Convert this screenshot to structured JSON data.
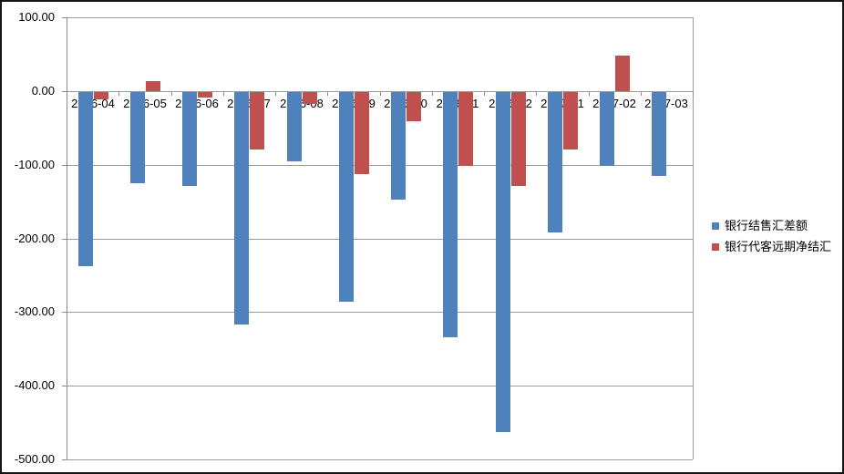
{
  "chart_data": {
    "type": "bar",
    "title": "",
    "xlabel": "",
    "ylabel": "",
    "categories": [
      "2016-04",
      "2016-05",
      "2016-06",
      "2016-07",
      "2016-08",
      "2016-09",
      "2016-10",
      "2016-11",
      "2016-12",
      "2017-01",
      "2017-02",
      "2017-03"
    ],
    "series": [
      {
        "name": "银行结售汇差额",
        "color": "#4F81BD",
        "values": [
          -236,
          -124,
          -128,
          -315,
          -94,
          -284,
          -146,
          -333,
          -462,
          -191,
          -100,
          -114
        ]
      },
      {
        "name": "银行代客远期净结汇",
        "color": "#C0504D",
        "values": [
          -10,
          14,
          -7,
          -78,
          -16,
          -111,
          -39,
          -100,
          -127,
          -78,
          48,
          0
        ]
      }
    ],
    "y_axis": {
      "min": -500,
      "max": 100,
      "step": 100,
      "tick_labels": [
        "100.00",
        "0.00",
        "-100.00",
        "-200.00",
        "-300.00",
        "-400.00",
        "-500.00"
      ]
    },
    "grid": true,
    "legend_position": "middle-right"
  },
  "colors": {
    "series_blue": "#4F81BD",
    "series_red": "#C0504D",
    "gridline": "#9b9b9b",
    "axis": "#8a8a8a",
    "text": "#000000",
    "background": "#ffffff",
    "frame_border": "#161616"
  }
}
